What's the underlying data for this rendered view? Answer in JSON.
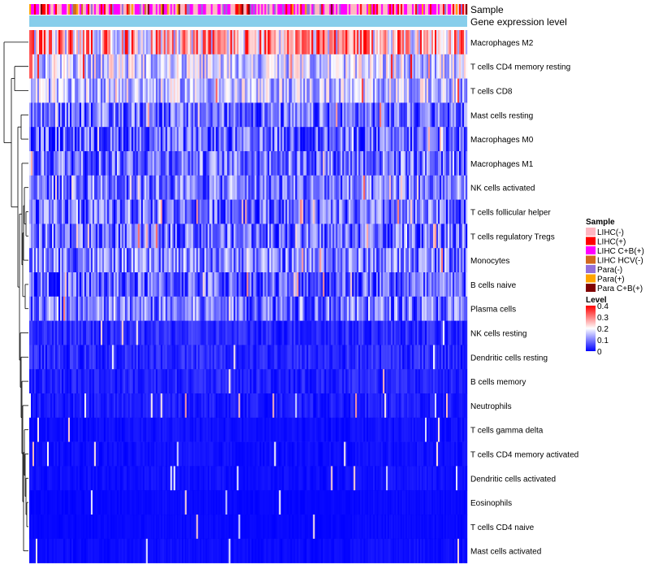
{
  "chart_data": {
    "type": "heatmap",
    "annotation_labels": [
      "Sample",
      "Gene expression level"
    ],
    "annotation_colors": {
      "gene_expression_level": "#87ceeb"
    },
    "rows": [
      {
        "name": "Macrophages M2",
        "mean": 0.26
      },
      {
        "name": "T cells CD4 memory resting",
        "mean": 0.16
      },
      {
        "name": "T cells CD8",
        "mean": 0.15
      },
      {
        "name": "Mast cells resting",
        "mean": 0.08
      },
      {
        "name": "Macrophages M0",
        "mean": 0.07
      },
      {
        "name": "Macrophages M1",
        "mean": 0.09
      },
      {
        "name": "NK cells activated",
        "mean": 0.09
      },
      {
        "name": "T cells follicular helper",
        "mean": 0.08
      },
      {
        "name": "T cells regulatory  Tregs",
        "mean": 0.08
      },
      {
        "name": "Monocytes",
        "mean": 0.1
      },
      {
        "name": "B cells naive",
        "mean": 0.07
      },
      {
        "name": "Plasma cells",
        "mean": 0.09
      },
      {
        "name": "NK cells resting",
        "mean": 0.03
      },
      {
        "name": "Dendritic cells resting",
        "mean": 0.03
      },
      {
        "name": "B cells memory",
        "mean": 0.025
      },
      {
        "name": "Neutrophils",
        "mean": 0.02
      },
      {
        "name": "T cells gamma delta",
        "mean": 0.01
      },
      {
        "name": "T cells CD4 memory activated",
        "mean": 0.01
      },
      {
        "name": "Dendritic cells activated",
        "mean": 0.01
      },
      {
        "name": "Eosinophils",
        "mean": 0.005
      },
      {
        "name": "T cells CD4 naive",
        "mean": 0.005
      },
      {
        "name": "Mast cells activated",
        "mean": 0.008
      }
    ],
    "sample_legend": {
      "title": "Sample",
      "items": [
        {
          "label": "LIHC(-)",
          "color": "#ffb6c1"
        },
        {
          "label": "LIHC(+)",
          "color": "#ff0000"
        },
        {
          "label": "LIHC C+B(+)",
          "color": "#ff00ff"
        },
        {
          "label": "LIHC HCV(-)",
          "color": "#d2691e"
        },
        {
          "label": "Para(-)",
          "color": "#9370db"
        },
        {
          "label": "Para(+)",
          "color": "#ffa500"
        },
        {
          "label": "Para C+B(+)",
          "color": "#800000"
        }
      ]
    },
    "level_legend": {
      "title": "Level",
      "ticks": [
        "0.4",
        "0.3",
        "0.2",
        "0.1",
        "0"
      ],
      "tick_values": [
        0.4,
        0.3,
        0.2,
        0.1,
        0
      ],
      "range": [
        0,
        0.4
      ],
      "colors": [
        "#0000ff",
        "#ffffff",
        "#ff0000"
      ]
    }
  }
}
